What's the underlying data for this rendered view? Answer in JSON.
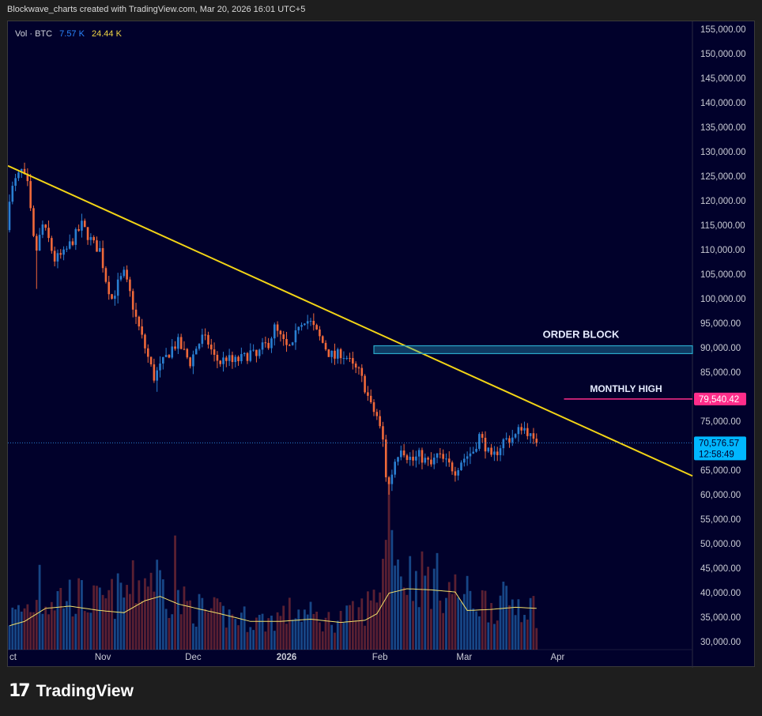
{
  "header": {
    "caption": "Blockwave_charts created with TradingView.com, Mar 20, 2026 16:01 UTC+5"
  },
  "legend": {
    "vol_label": "Vol · BTC",
    "vol_value_1": "7.57 K",
    "vol_value_2": "24.44 K",
    "vol_color_1": "#2962ff",
    "vol_color_2": "#f0d544"
  },
  "annotations": {
    "order_block_label": "ORDER BLOCK",
    "monthly_high_label": "MONTHLY HIGH",
    "monthly_high_price": "79,540.42",
    "current_price": "70,576.57",
    "countdown": "12:58:49"
  },
  "colors": {
    "background": "#01012b",
    "up": "#2a7fd1",
    "down": "#f0693a",
    "trendline": "#f2d416",
    "monthly_high": "#ff2d8a",
    "order_block": "#2aa7c9",
    "price_tag": "#00b7ff"
  },
  "footer": {
    "brand": "TradingView"
  },
  "chart_data": {
    "type": "candlestick",
    "y_axis": {
      "ticks": [
        "155,000.00",
        "150,000.00",
        "145,000.00",
        "140,000.00",
        "135,000.00",
        "130,000.00",
        "125,000.00",
        "120,000.00",
        "115,000.00",
        "110,000.00",
        "105,000.00",
        "100,000.00",
        "95,000.00",
        "90,000.00",
        "85,000.00",
        "75,000.00",
        "65,000.00",
        "60,000.00",
        "55,000.00",
        "50,000.00",
        "45,000.00",
        "40,000.00",
        "35,000.00",
        "30,000.00"
      ],
      "ylim": [
        29000,
        157000
      ]
    },
    "x_axis": {
      "ticks": [
        "Oct",
        "Nov",
        "Dec",
        "2026",
        "Feb",
        "Mar",
        "Apr"
      ],
      "tick_days": [
        0,
        31,
        61,
        92,
        123,
        151,
        182
      ]
    },
    "price_anchors": [
      [
        0,
        114000
      ],
      [
        1,
        121000
      ],
      [
        3,
        124000
      ],
      [
        5,
        126000
      ],
      [
        7,
        123000
      ],
      [
        9,
        112000
      ],
      [
        10,
        110000
      ],
      [
        12,
        115000
      ],
      [
        14,
        112000
      ],
      [
        16,
        108000
      ],
      [
        19,
        109000
      ],
      [
        22,
        112000
      ],
      [
        25,
        115000
      ],
      [
        27,
        113000
      ],
      [
        29,
        111000
      ],
      [
        31,
        110000
      ],
      [
        33,
        104000
      ],
      [
        35,
        100000
      ],
      [
        37,
        103000
      ],
      [
        39,
        105000
      ],
      [
        41,
        101000
      ],
      [
        43,
        96000
      ],
      [
        45,
        92000
      ],
      [
        47,
        88000
      ],
      [
        49,
        84000
      ],
      [
        51,
        86000
      ],
      [
        53,
        88000
      ],
      [
        55,
        90000
      ],
      [
        57,
        91000
      ],
      [
        59,
        89000
      ],
      [
        61,
        87000
      ],
      [
        63,
        90000
      ],
      [
        65,
        92000
      ],
      [
        67,
        91000
      ],
      [
        69,
        88000
      ],
      [
        71,
        87000
      ],
      [
        73,
        88000
      ],
      [
        75,
        87000
      ],
      [
        77,
        87500
      ],
      [
        79,
        88000
      ],
      [
        81,
        89000
      ],
      [
        83,
        88000
      ],
      [
        85,
        90000
      ],
      [
        87,
        91000
      ],
      [
        89,
        94000
      ],
      [
        91,
        92000
      ],
      [
        93,
        90000
      ],
      [
        95,
        90000
      ],
      [
        97,
        95000
      ],
      [
        99,
        96000
      ],
      [
        101,
        95000
      ],
      [
        103,
        93000
      ],
      [
        105,
        91000
      ],
      [
        107,
        89000
      ],
      [
        109,
        88000
      ],
      [
        111,
        89000
      ],
      [
        113,
        88000
      ],
      [
        115,
        86000
      ],
      [
        117,
        85000
      ],
      [
        119,
        82000
      ],
      [
        121,
        78000
      ],
      [
        123,
        76000
      ],
      [
        125,
        71000
      ],
      [
        126,
        64000
      ],
      [
        127,
        62000
      ],
      [
        129,
        67000
      ],
      [
        131,
        70000
      ],
      [
        133,
        68000
      ],
      [
        135,
        67000
      ],
      [
        137,
        68000
      ],
      [
        139,
        67000
      ],
      [
        141,
        66000
      ],
      [
        143,
        68000
      ],
      [
        145,
        67000
      ],
      [
        147,
        66000
      ],
      [
        149,
        65000
      ],
      [
        151,
        67000
      ],
      [
        153,
        68000
      ],
      [
        155,
        69000
      ],
      [
        157,
        72000
      ],
      [
        159,
        70000
      ],
      [
        161,
        67000
      ],
      [
        163,
        69000
      ],
      [
        165,
        71000
      ],
      [
        167,
        71500
      ],
      [
        169,
        72000
      ],
      [
        171,
        74000
      ],
      [
        173,
        73000
      ],
      [
        175,
        70500
      ]
    ],
    "volume_anchors": [
      [
        0,
        3000
      ],
      [
        10,
        4500
      ],
      [
        20,
        5000
      ],
      [
        30,
        4200
      ],
      [
        40,
        5500
      ],
      [
        48,
        7000
      ],
      [
        55,
        4500
      ],
      [
        65,
        3500
      ],
      [
        75,
        3000
      ],
      [
        85,
        2600
      ],
      [
        95,
        3600
      ],
      [
        105,
        2600
      ],
      [
        115,
        3200
      ],
      [
        121,
        4500
      ],
      [
        125,
        9000
      ],
      [
        127,
        14000
      ],
      [
        130,
        7000
      ],
      [
        140,
        6500
      ],
      [
        150,
        5000
      ],
      [
        160,
        4200
      ],
      [
        170,
        4500
      ],
      [
        175,
        3600
      ]
    ],
    "volume_ma": [
      [
        0,
        2200
      ],
      [
        5,
        2600
      ],
      [
        12,
        3800
      ],
      [
        20,
        4000
      ],
      [
        30,
        3600
      ],
      [
        38,
        3400
      ],
      [
        45,
        4500
      ],
      [
        50,
        4900
      ],
      [
        56,
        4200
      ],
      [
        62,
        3800
      ],
      [
        70,
        3300
      ],
      [
        80,
        2600
      ],
      [
        90,
        2600
      ],
      [
        100,
        2800
      ],
      [
        110,
        2500
      ],
      [
        118,
        2700
      ],
      [
        122,
        3300
      ],
      [
        126,
        5200
      ],
      [
        132,
        5600
      ],
      [
        140,
        5500
      ],
      [
        148,
        5300
      ],
      [
        152,
        3600
      ],
      [
        160,
        3700
      ],
      [
        168,
        3900
      ],
      [
        175,
        3800
      ]
    ],
    "vol_lim": [
      0,
      16000
    ],
    "trendline": {
      "from": [
        0,
        127000
      ],
      "to": [
        210,
        68500
      ]
    },
    "order_block": {
      "low": 88800,
      "high": 90400,
      "start_day": 121
    },
    "monthly_high": {
      "value": 79540.42,
      "start_day": 171
    },
    "current_price": 70576.57
  }
}
